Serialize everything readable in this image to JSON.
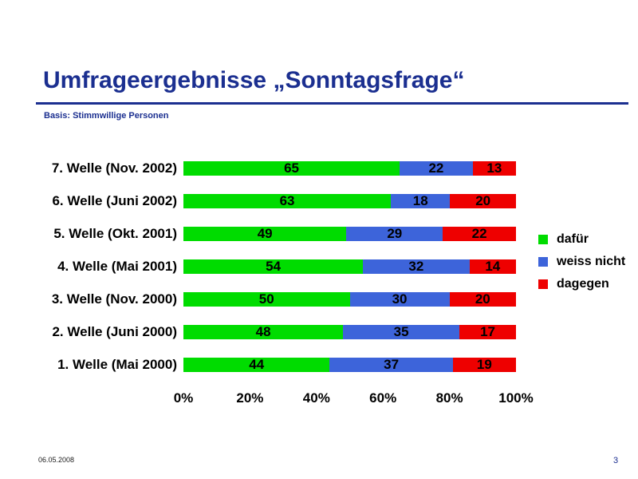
{
  "slide": {
    "title": "Umfrageergebnisse „Sonntagsfrage“",
    "subtitle": "Basis: Stimmwillige Personen",
    "footer_date": "06.05.2008",
    "page_number": "3"
  },
  "colors": {
    "accent_navy": "#1b2f90",
    "dafur_green": "#00dc00",
    "weiss_nicht_blue": "#3d64da",
    "dagegen_red": "#ee0000"
  },
  "chart_data": {
    "type": "bar",
    "orientation": "horizontal",
    "stacked": true,
    "title": "Umfrageergebnisse „Sonntagsfrage“",
    "subtitle": "Basis: Stimmwillige Personen",
    "categories": [
      "7. Welle (Nov. 2002)",
      "6. Welle (Juni 2002)",
      "5. Welle (Okt. 2001)",
      "4. Welle (Mai 2001)",
      "3. Welle (Nov. 2000)",
      "2. Welle (Juni 2000)",
      "1. Welle (Mai 2000)"
    ],
    "series": [
      {
        "name": "dafür",
        "color": "#00dc00",
        "values": [
          65,
          63,
          49,
          54,
          50,
          48,
          44
        ]
      },
      {
        "name": "weiss nicht",
        "color": "#3d64da",
        "values": [
          22,
          18,
          29,
          32,
          30,
          35,
          37
        ]
      },
      {
        "name": "dagegen",
        "color": "#ee0000",
        "values": [
          13,
          20,
          22,
          14,
          20,
          17,
          19
        ]
      }
    ],
    "value_labels": "inside",
    "xlabel": "",
    "ylabel": "",
    "x_axis": {
      "range": [
        0,
        100
      ],
      "tick_values": [
        0,
        20,
        40,
        60,
        80,
        100
      ],
      "tick_labels": [
        "0%",
        "20%",
        "40%",
        "60%",
        "80%",
        "100%"
      ]
    },
    "grid": false,
    "legend_position": "right",
    "legend": [
      "dafür",
      "weiss nicht",
      "dagegen"
    ]
  }
}
